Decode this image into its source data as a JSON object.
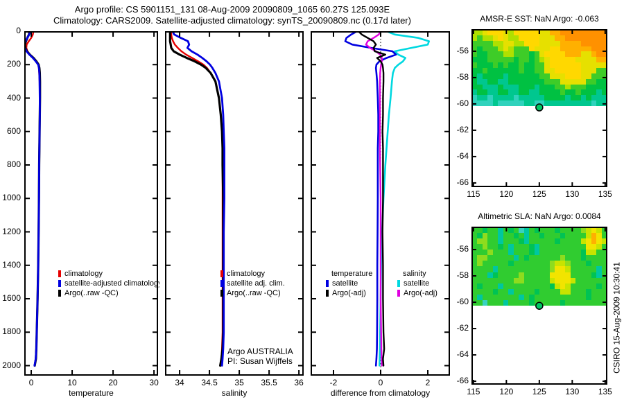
{
  "header": {
    "title_line1": "Argo profile: CS 5901151_131 08-Aug-2009 20090809_1065 60.27S 125.093E",
    "title_line2": "Climatology: CARS2009. Satellite-adjusted climatology: synTS_20090809.nc (0.17d later)"
  },
  "footer_note": "CSIRO 15-Aug-2009 10:30:41",
  "colors": {
    "climatology": "#e60000",
    "satellite": "#0000e0",
    "argo": "#000000",
    "salinity_satellite": "#00d8e0",
    "salinity_argo": "#e000e0",
    "marker_fill": "#00c864"
  },
  "chart_data": [
    {
      "id": "temperature",
      "type": "line",
      "xlabel": "temperature",
      "xticks": [
        0,
        10,
        20,
        30
      ],
      "xlim": [
        -1.7,
        31.0
      ],
      "yticks": [
        0,
        200,
        400,
        600,
        800,
        1000,
        1200,
        1400,
        1600,
        1800,
        2000
      ],
      "ylim": [
        0,
        2060
      ],
      "depths": [
        0,
        20,
        40,
        60,
        80,
        100,
        120,
        140,
        160,
        180,
        200,
        220,
        250,
        300,
        400,
        500,
        600,
        700,
        800,
        1000,
        1200,
        1400,
        1600,
        1800,
        1900,
        1960,
        2000
      ],
      "series": [
        {
          "name": "climatology",
          "color": "#e60000",
          "width": 2.4,
          "values": [
            0.55,
            0.4,
            0.0,
            -0.6,
            -1.1,
            -1.2,
            -0.9,
            -0.3,
            0.5,
            1.2,
            1.7,
            1.85,
            1.95,
            2.05,
            2.1,
            2.1,
            2.05,
            2.0,
            1.95,
            1.9,
            1.8,
            1.7,
            1.55,
            1.35,
            1.25,
            1.1,
            0.8
          ]
        },
        {
          "name": "Argo(..raw -QC)",
          "color": "#000000",
          "width": 3.2,
          "values": [
            -0.4,
            -0.55,
            -0.95,
            -1.3,
            -1.55,
            -1.45,
            -1.05,
            -0.35,
            0.55,
            1.25,
            1.8,
            2.0,
            2.1,
            2.15,
            2.15,
            2.1,
            2.05,
            2.0,
            1.95,
            1.9,
            1.8,
            1.7,
            1.55,
            1.35,
            1.25,
            1.15,
            0.85
          ]
        },
        {
          "name": "satellite-adjusted climatology",
          "color": "#0000e0",
          "width": 2.8,
          "values": [
            -0.3,
            -0.5,
            -0.95,
            -1.45,
            -1.7,
            -1.55,
            -1.15,
            -0.45,
            0.4,
            1.1,
            1.7,
            1.9,
            2.0,
            2.05,
            2.1,
            2.1,
            2.05,
            2.0,
            1.95,
            1.9,
            1.8,
            1.7,
            1.55,
            1.35,
            1.25,
            1.1,
            0.8
          ]
        }
      ],
      "legend": [
        {
          "label": "climatology",
          "color": "#e60000"
        },
        {
          "label": "satellite-adjusted climatology",
          "color": "#0000e0"
        },
        {
          "label": "Argo(..raw -QC)",
          "color": "#000000"
        }
      ]
    },
    {
      "id": "salinity",
      "type": "line",
      "xlabel": "salinity",
      "xticks": [
        34,
        34.5,
        35,
        35.5,
        36
      ],
      "xlim": [
        33.755,
        36.08
      ],
      "ylim": [
        0,
        2060
      ],
      "depths": [
        0,
        20,
        40,
        60,
        80,
        100,
        120,
        140,
        160,
        180,
        200,
        220,
        250,
        300,
        400,
        500,
        600,
        700,
        800,
        1000,
        1200,
        1400,
        1600,
        1800,
        1900,
        1960,
        2000
      ],
      "series": [
        {
          "name": "climatology",
          "color": "#e60000",
          "width": 2.4,
          "values": [
            33.86,
            33.86,
            33.87,
            33.89,
            33.92,
            33.97,
            34.03,
            34.11,
            34.21,
            34.31,
            34.4,
            34.46,
            34.52,
            34.6,
            34.66,
            34.69,
            34.71,
            34.72,
            34.72,
            34.72,
            34.72,
            34.72,
            34.72,
            34.72,
            34.71,
            34.7,
            34.69
          ]
        },
        {
          "name": "Argo(..raw -QC)",
          "color": "#000000",
          "width": 3.2,
          "values": [
            33.84,
            33.84,
            33.84,
            33.84,
            33.85,
            33.86,
            33.9,
            34.0,
            34.12,
            34.25,
            34.36,
            34.44,
            34.52,
            34.6,
            34.66,
            34.69,
            34.71,
            34.72,
            34.72,
            34.73,
            34.73,
            34.73,
            34.73,
            34.73,
            34.72,
            34.7,
            34.68
          ]
        },
        {
          "name": "satellite adj. clim.",
          "color": "#0000e0",
          "width": 2.8,
          "values": [
            33.88,
            33.91,
            34.02,
            34.14,
            34.16,
            34.13,
            34.2,
            34.3,
            34.38,
            34.45,
            34.51,
            34.55,
            34.6,
            34.66,
            34.71,
            34.73,
            34.74,
            34.75,
            34.75,
            34.75,
            34.74,
            34.74,
            34.74,
            34.74,
            34.73,
            34.72,
            34.71
          ]
        }
      ],
      "legend": [
        {
          "label": "climatology",
          "color": "#e60000"
        },
        {
          "label": "satellite adj. clim.",
          "color": "#0000e0"
        },
        {
          "label": "Argo(..raw -QC)",
          "color": "#000000"
        }
      ],
      "annotations": [
        "Argo AUSTRALIA",
        "PI: Susan Wijffels"
      ]
    },
    {
      "id": "difference",
      "type": "line",
      "xlabel": "difference from climatology",
      "xticks": [
        -2,
        0,
        2
      ],
      "xlim": [
        -2.97,
        2.94
      ],
      "ylim": [
        0,
        2060
      ],
      "zero_line": true,
      "depths": [
        0,
        20,
        40,
        60,
        80,
        100,
        120,
        140,
        160,
        180,
        200,
        220,
        250,
        300,
        400,
        500,
        600,
        700,
        800,
        1000,
        1200,
        1400,
        1600,
        1800,
        1900,
        1960,
        2000
      ],
      "series": [
        {
          "name": "salinity satellite",
          "color": "#00d8e0",
          "width": 2.6,
          "values": [
            0.25,
            0.6,
            1.6,
            2.05,
            2.0,
            1.3,
            0.6,
            0.75,
            1.05,
            0.95,
            0.75,
            0.6,
            0.52,
            0.48,
            0.42,
            0.35,
            0.3,
            0.25,
            0.2,
            0.12,
            0.06,
            0.02,
            0.0,
            -0.02,
            -0.03,
            -0.04,
            -0.05
          ]
        },
        {
          "name": "temperature satellite",
          "color": "#0000e0",
          "width": 2.6,
          "values": [
            -1.0,
            -1.25,
            -1.45,
            -1.5,
            -1.2,
            -0.4,
            0.5,
            0.65,
            0.25,
            -0.05,
            -0.18,
            -0.2,
            -0.18,
            -0.15,
            -0.12,
            -0.1,
            -0.1,
            -0.12,
            -0.12,
            -0.12,
            -0.13,
            -0.14,
            -0.14,
            -0.15,
            -0.16,
            -0.18,
            -0.2
          ]
        },
        {
          "name": "salinity Argo(-adj)",
          "color": "#e000e0",
          "width": 2.4,
          "values": [
            0.0,
            -0.08,
            -0.3,
            -0.55,
            -0.62,
            -0.45,
            -0.2,
            -0.02,
            0.05,
            0.05,
            0.02,
            0.0,
            -0.02,
            -0.03,
            -0.03,
            -0.03,
            -0.03,
            -0.03,
            -0.02,
            0.0,
            0.0,
            0.0,
            0.0,
            0.02,
            0.03,
            0.04,
            0.05
          ]
        },
        {
          "name": "temperature Argo(-adj)",
          "color": "#000000",
          "width": 2.4,
          "values": [
            -0.95,
            -0.8,
            -0.55,
            -0.3,
            -0.2,
            -0.3,
            -0.25,
            0.2,
            -0.15,
            0.0,
            0.08,
            0.1,
            0.12,
            0.12,
            0.1,
            0.1,
            0.08,
            0.1,
            0.1,
            0.1,
            0.08,
            0.1,
            0.1,
            0.12,
            0.15,
            0.1,
            0.12
          ]
        }
      ],
      "legend_groups": [
        {
          "header": "temperature",
          "items": [
            {
              "label": "satellite",
              "color": "#0000e0"
            },
            {
              "label": "Argo(-adj)",
              "color": "#000000"
            }
          ]
        },
        {
          "header": "salinity",
          "items": [
            {
              "label": "satellite",
              "color": "#00d8e0"
            },
            {
              "label": "Argo(-adj)",
              "color": "#e000e0"
            }
          ]
        }
      ]
    },
    {
      "id": "sst_map",
      "type": "heatmap",
      "title": "AMSR-E SST: NaN Argo: -0.063",
      "xticks": [
        115,
        120,
        125,
        130,
        135
      ],
      "yticks": [
        -56,
        -58,
        -60,
        -62,
        -64,
        -66
      ],
      "marker": {
        "lon": 125,
        "lat": -60.27
      },
      "palette": {
        "O": "#ff9100",
        "o": "#ffb000",
        "Y": "#ffd800",
        "y": "#e6e000",
        "L": "#b0e000",
        "g": "#3ecc28",
        "G": "#00c142",
        "t": "#00c78f",
        "c": "#30d2bc"
      },
      "grid_rows": [
        "LLyYYYyLYYYYYyyooOOOOOOOOO",
        "LgLLyYyLLYYYYyyyooOOOOOOOO",
        "ggggLLyyLLYYYyyyyooooOOOOO",
        "gGgggLyLgggYyyyYYooooooOOO",
        "gGGgggLLgggGgyYYYYoooyyoOO",
        "GGGgggggGggGgLyYYYYYyyyyoo",
        "gGGGgGgGGgGGggyYYYYYYyyyyy",
        "GGgGGGGGGgGGggyyYYYYYyyygg",
        "GtGGGGtGGGGGGggyyyYYYyyggg",
        "GttGGttGGGGGGGgggyyyyyggGG",
        "GGtttGtttGGGtGGGggLgggGGGG",
        "tGGttGGttGGttGGGGgGGgGGGtG",
        "cttcttttctttttGGGGtGGtGttt",
        "cccctcccccttcctttttttttctt"
      ]
    },
    {
      "id": "sla_map",
      "type": "heatmap",
      "title": "Altimetric SLA: NaN Argo: 0.0084",
      "xticks": [
        115,
        120,
        125,
        130,
        135
      ],
      "yticks": [
        -56,
        -58,
        -60,
        -62,
        -64,
        -66
      ],
      "marker": {
        "lon": 125,
        "lat": -60.27
      },
      "palette": {
        "O": "#ffb000",
        "o": "#ffc400",
        "Y": "#f2e400",
        "y": "#c8e400",
        "L": "#8edc1e",
        "g": "#30cc30",
        "G": "#00c354",
        "t": "#00c7a0",
        "c": "#38d2c0"
      },
      "grid_rows": [
        "ggGggtgGgctgGgggGggggLyYyg",
        "gGLggtggGgtggGgggGggggyOYg",
        "gLLggtgggGtgggggGggggyYOYy",
        "ggLggGgtgggGtgggggggggYYyg",
        "gggLgggtgggGtggggggggGyygg",
        "gLLgggggtgGggggggLgggGgggg",
        "gLgggggGgggggggLyyLgggGggg",
        "ggggtggggggggggLYYygggggtg",
        "gggtGggggLgggggYYYYggggGtg",
        "ggggggggLLgggggyYYYygggggg",
        "gGgggtgggggggggGyYygggggGg",
        "ggggGggtggggGggggyygggGggg",
        "gtgggggggtgGggggggggggGggg",
        "ggcgggtggggGgggggGgggggggg"
      ]
    }
  ]
}
